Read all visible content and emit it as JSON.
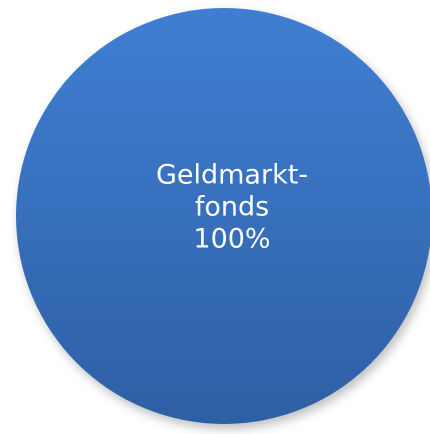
{
  "chart_data": {
    "type": "pie",
    "slices": [
      {
        "label_lines": [
          "Geldmarkt-",
          "fonds"
        ],
        "value": 100,
        "value_label": "100%",
        "color": "#3D7CD0"
      }
    ]
  },
  "colors": {
    "slice_top": "#3F7FD3",
    "slice_bottom": "#2E5FA4",
    "shadow": "#8c8c8c"
  }
}
